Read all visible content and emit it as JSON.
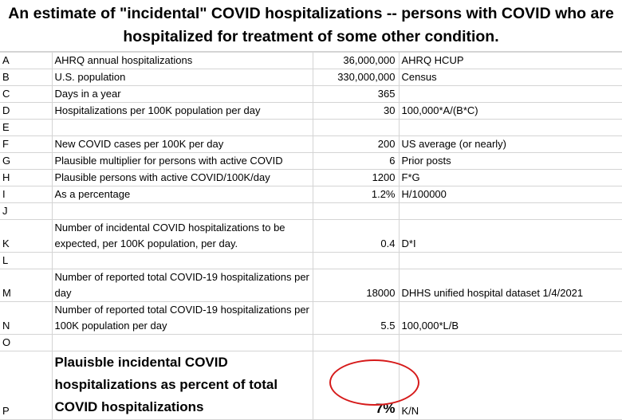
{
  "title": {
    "line1": "An estimate of \"incidental\" COVID hospitalizations -- persons with COVID who are",
    "line2": "hospitalized for treatment of some other condition."
  },
  "rows": [
    {
      "label": "A",
      "desc": "AHRQ annual hospitalizations",
      "value": "36,000,000",
      "note": "AHRQ HCUP"
    },
    {
      "label": "B",
      "desc": "U.S. population",
      "value": "330,000,000",
      "note": "Census"
    },
    {
      "label": "C",
      "desc": "Days in a year",
      "value": "365",
      "note": ""
    },
    {
      "label": "D",
      "desc": "Hospitalizations per 100K population per day",
      "value": "30",
      "note": "100,000*A/(B*C)"
    },
    {
      "label": "E",
      "desc": "",
      "value": "",
      "note": ""
    },
    {
      "label": "F",
      "desc": "New COVID cases per 100K per day",
      "value": "200",
      "note": "US average (or nearly)"
    },
    {
      "label": "G",
      "desc": "Plausible multiplier for persons with active COVID",
      "value": "6",
      "note": "Prior posts"
    },
    {
      "label": "H",
      "desc": "Plausible persons with active COVID/100K/day",
      "value": "1200",
      "note": "F*G"
    },
    {
      "label": "I",
      "desc": "As a percentage",
      "value": "1.2%",
      "note": "H/100000"
    },
    {
      "label": "J",
      "desc": "",
      "value": "",
      "note": ""
    },
    {
      "label": "K",
      "desc": "Number of incidental COVID hospitalizations to be expected, per 100K population, per day.",
      "value": "0.4",
      "note": "D*I"
    },
    {
      "label": "L",
      "desc": "",
      "value": "",
      "note": ""
    },
    {
      "label": "M",
      "desc": "Number of reported total COVID-19 hospitalizations per day",
      "value": "18000",
      "note": "DHHS unified hospital dataset 1/4/2021"
    },
    {
      "label": "N",
      "desc": "Number of reported total COVID-19 hospitalizations per 100K population per day",
      "value": "5.5",
      "note": "100,000*L/B"
    },
    {
      "label": "O",
      "desc": "",
      "value": "",
      "note": ""
    },
    {
      "label": "P",
      "desc": "Plauisble incidental COVID hospitalizations as percent of total COVID hospitalizations",
      "value": "7%",
      "note": "K/N"
    }
  ],
  "annotation": {
    "color": "#d61a1a",
    "shape": "ellipse",
    "target": "P value"
  }
}
